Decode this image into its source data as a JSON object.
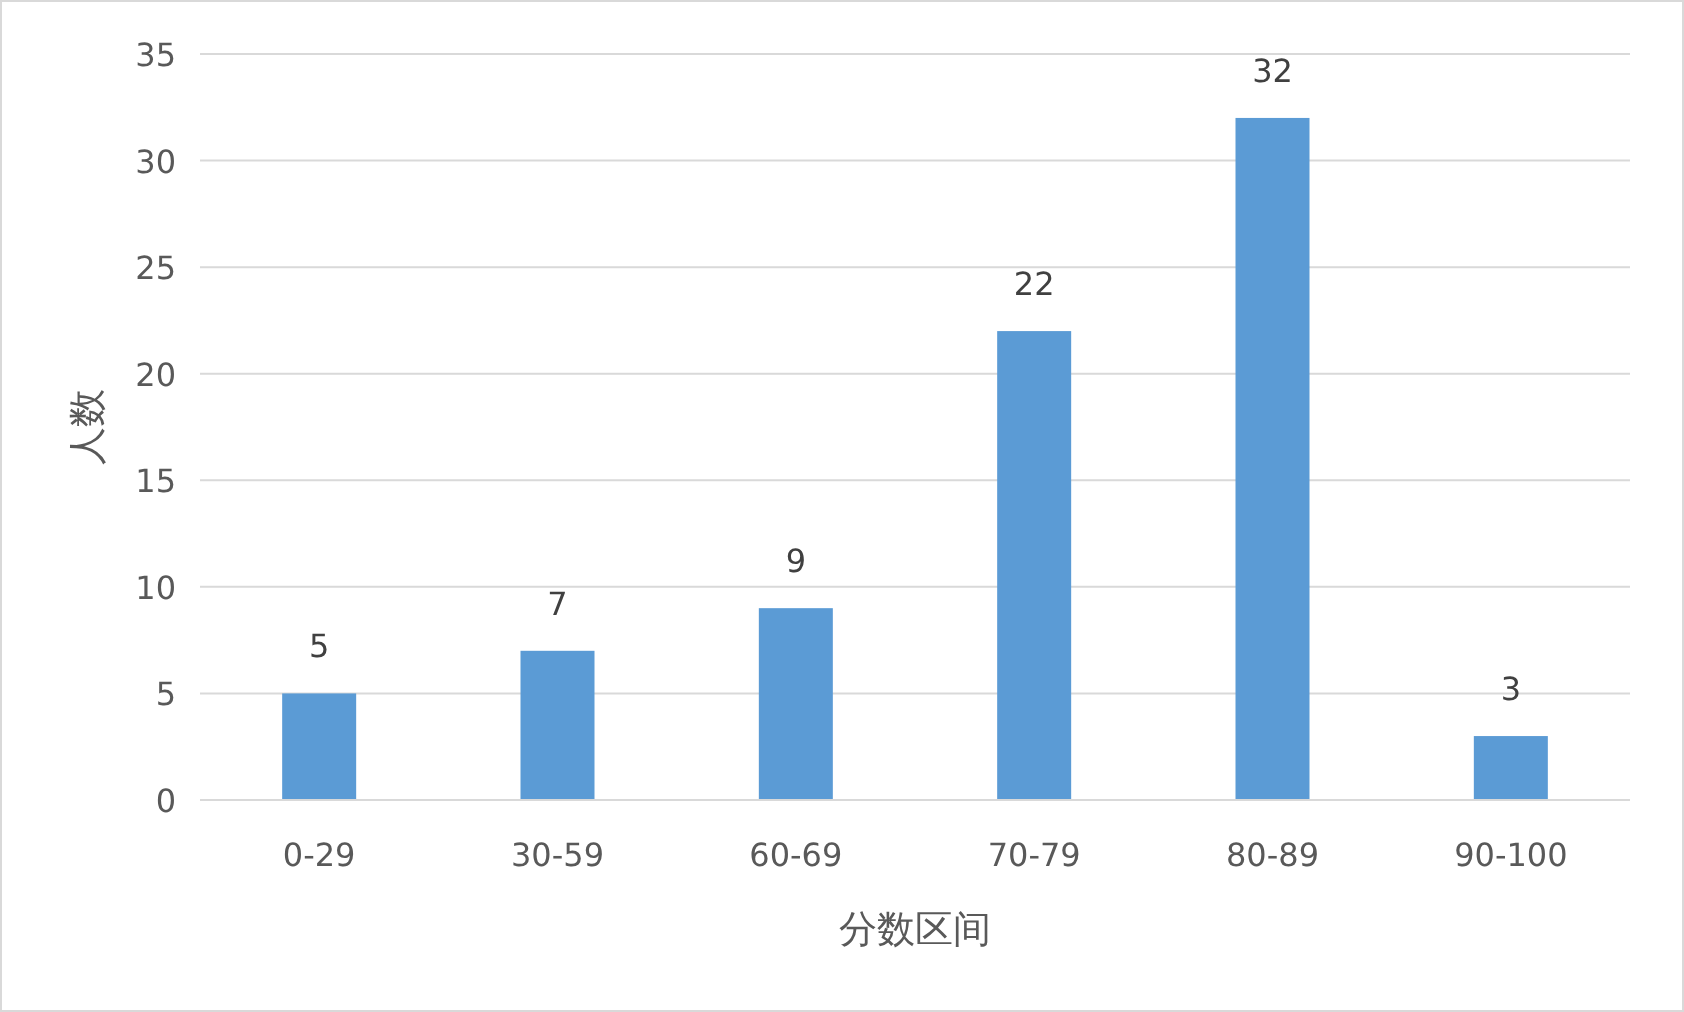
{
  "chart_data": {
    "type": "bar",
    "xlabel": "分数区间",
    "ylabel": "人数",
    "categories": [
      "0-29",
      "30-59",
      "60-69",
      "70-79",
      "80-89",
      "90-100"
    ],
    "values": [
      5,
      7,
      9,
      22,
      32,
      3
    ],
    "color": "#5b9bd5",
    "ylim": [
      0,
      35
    ],
    "yticks": [
      0,
      5,
      10,
      15,
      20,
      25,
      30,
      35
    ],
    "grid": "y",
    "data_labels": true
  }
}
